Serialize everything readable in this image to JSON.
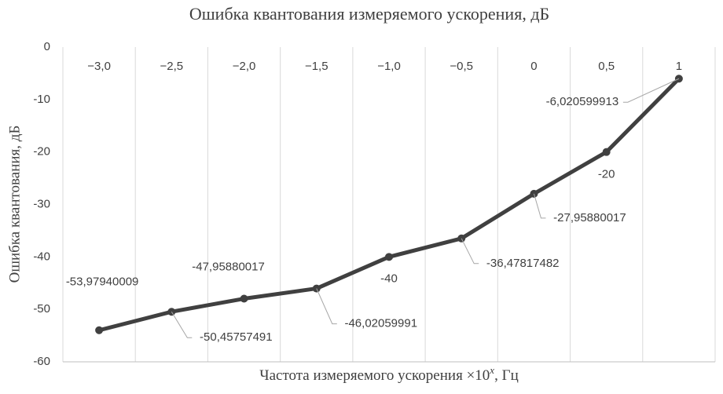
{
  "chart_data": {
    "type": "line",
    "title": "Ошибка квантования измеряемого ускорения, дБ",
    "y_label": "Ошибка квантования, дБ",
    "x_label": [
      "Частота измеряемого ускорения ×10",
      "x",
      ", Гц"
    ],
    "categories": [
      "−3,0",
      "−2,5",
      "−2,0",
      "−1,5",
      "−1,0",
      "−0,5",
      "0",
      "0,5",
      "1"
    ],
    "series": [
      {
        "color": "#404040",
        "values": [
          -53.97940009,
          -50.45757491,
          -47.95880017,
          -46.02059991,
          -40,
          -36.47817482,
          -27.95880017,
          -20,
          -6.020599913
        ],
        "value_labels": [
          "-53,97940009",
          "-50,45757491",
          "-47,95880017",
          "-46,02059991",
          "-40",
          "-36,47817482",
          "-27,95880017",
          "-20",
          "-6,020599913"
        ]
      }
    ],
    "ylim": [
      -60,
      0
    ],
    "yticks": [
      0,
      -10,
      -20,
      -30,
      -40,
      -50,
      -60
    ],
    "grid": "vertical"
  }
}
